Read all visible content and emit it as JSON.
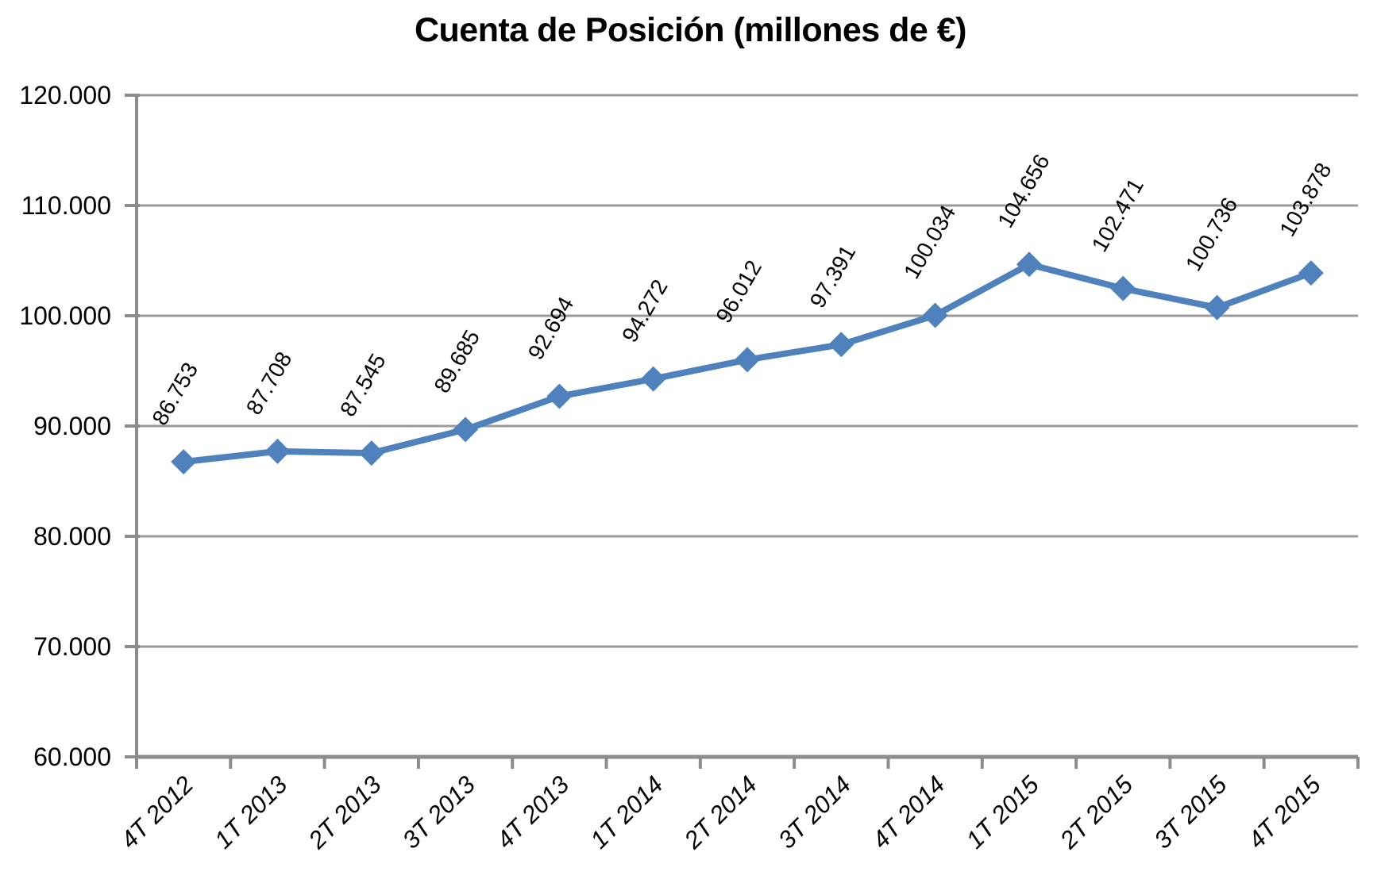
{
  "page": {
    "background": "#FFFFFF"
  },
  "chart_data": {
    "type": "line",
    "title": "Cuenta de Posición (millones de €)",
    "categories": [
      "4T 2012",
      "1T 2013",
      "2T 2013",
      "3T 2013",
      "4T 2013",
      "1T 2014",
      "2T 2014",
      "3T 2014",
      "4T 2014",
      "1T 2015",
      "2T 2015",
      "3T 2015",
      "4T 2015"
    ],
    "series": [
      {
        "name": "Cuenta de Posición",
        "values": [
          86753,
          87708,
          87545,
          89685,
          92694,
          94272,
          96012,
          97391,
          100034,
          104656,
          102471,
          100736,
          103878
        ],
        "point_labels": [
          "86.753",
          "87.708",
          "87.545",
          "89.685",
          "92.694",
          "94.272",
          "96.012",
          "97.391",
          "100.034",
          "104.656",
          "102.471",
          "100.736",
          "103.878"
        ]
      }
    ],
    "xlabel": "",
    "ylabel": "",
    "ylim": [
      60000,
      120000
    ],
    "ytick_step": 10000,
    "ytick_labels": [
      "60.000",
      "70.000",
      "80.000",
      "90.000",
      "100.000",
      "110.000",
      "120.000"
    ],
    "grid": true,
    "legend": "none",
    "marker": "diamond",
    "colors": {
      "line": "#4F81BD",
      "marker": "#4F81BD",
      "gridline": "#9A9A9A",
      "axis": "#8C8C8C",
      "text": "#000000"
    }
  }
}
